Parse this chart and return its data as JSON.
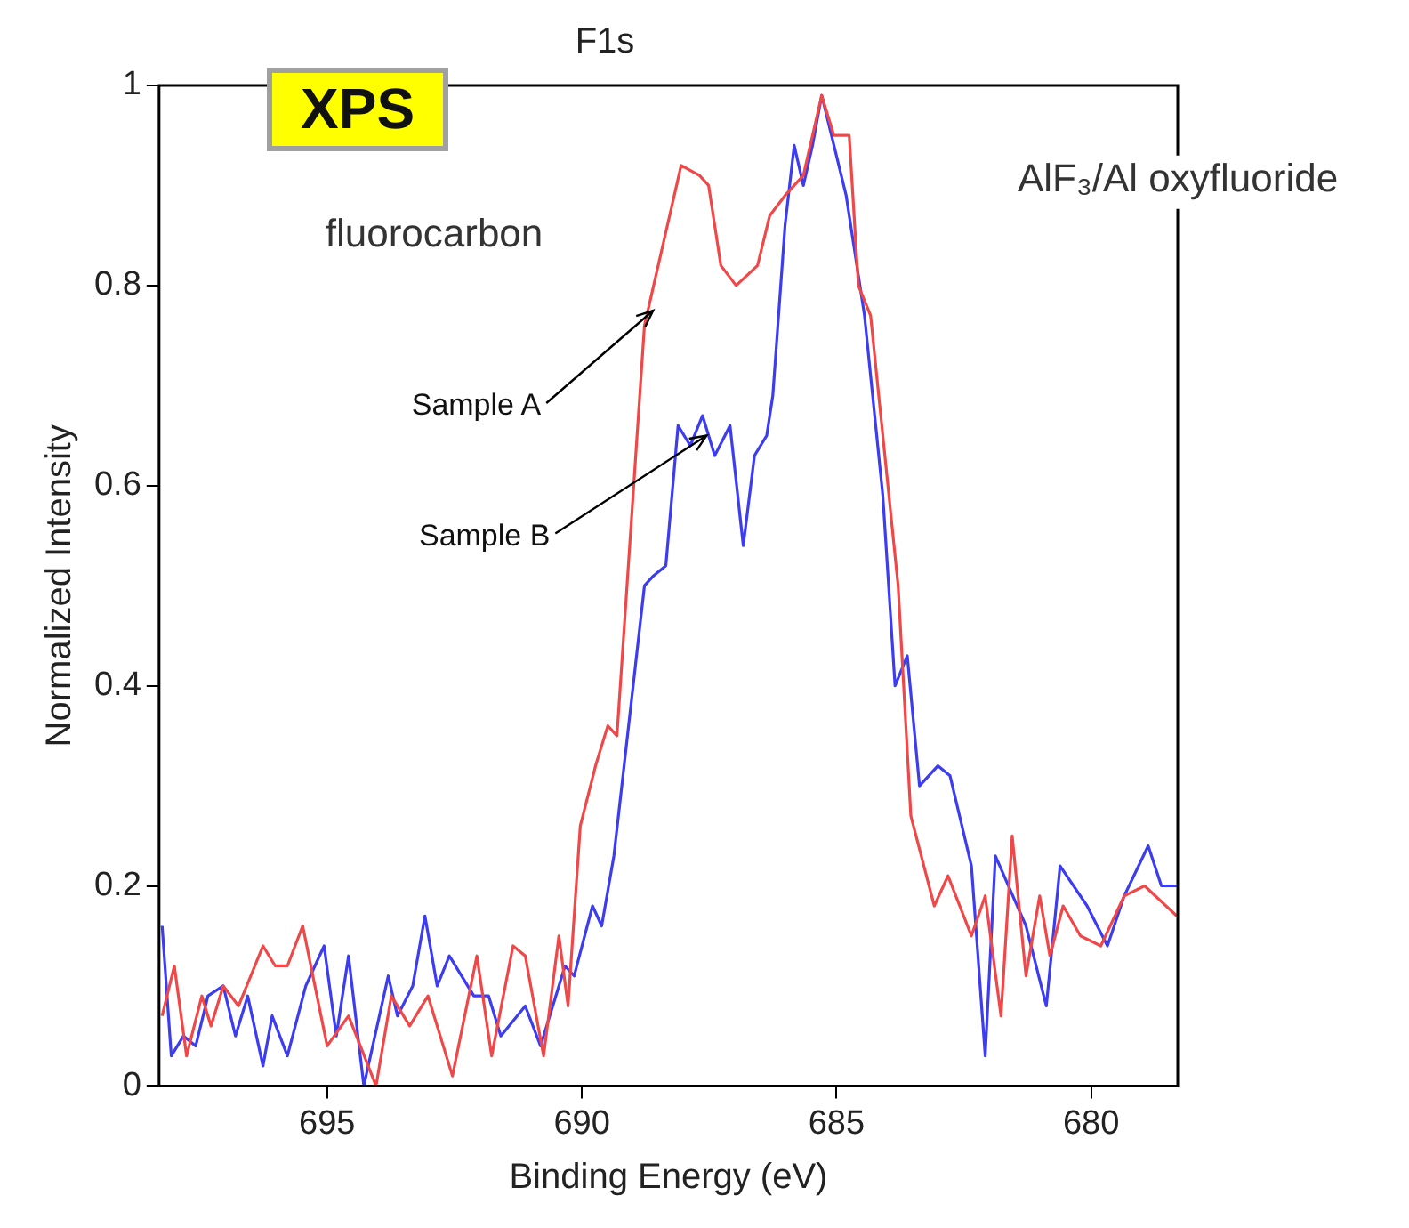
{
  "chart_data": {
    "type": "line",
    "title": "F1s",
    "xlabel": "Binding Energy (eV)",
    "ylabel": "Normalized Intensity",
    "xlim": [
      698.3,
      678.3
    ],
    "xticks": [
      695,
      690,
      685,
      680
    ],
    "ylim": [
      0,
      1
    ],
    "yticks": [
      0,
      0.2,
      0.4,
      0.6,
      0.8,
      1
    ],
    "grid": false,
    "legend": false,
    "marker": "none",
    "line_style": "solid",
    "annotations": [
      "XPS",
      "fluorocarbon",
      "AlF₃/Al oxyfluoride",
      {
        "text": "Sample A",
        "x": 688.6,
        "y": 0.775
      },
      {
        "text": "Sample B",
        "x": 687.55,
        "y": 0.65
      }
    ],
    "series": [
      {
        "color": "#f04848",
        "x": [
          698.24,
          698.0,
          697.76,
          697.46,
          697.28,
          697.04,
          696.74,
          696.26,
          696.02,
          695.78,
          695.48,
          695.0,
          694.58,
          694.04,
          693.74,
          693.38,
          693.02,
          692.54,
          692.06,
          691.77,
          691.35,
          691.11,
          690.75,
          690.45,
          690.27,
          690.03,
          689.73,
          689.49,
          689.31,
          688.77,
          688.05,
          687.69,
          687.51,
          687.27,
          686.97,
          686.55,
          686.31,
          686.01,
          685.65,
          685.29,
          685.05,
          684.75,
          684.57,
          684.33,
          684.21,
          683.79,
          683.54,
          683.08,
          682.81,
          682.35,
          682.08,
          681.77,
          681.55,
          681.28,
          681.01,
          680.81,
          680.55,
          680.21,
          679.81,
          679.35,
          678.95,
          678.32
        ],
        "values": [
          0.07,
          0.12,
          0.03,
          0.09,
          0.06,
          0.1,
          0.08,
          0.14,
          0.12,
          0.12,
          0.16,
          0.04,
          0.07,
          0.0,
          0.09,
          0.06,
          0.09,
          0.01,
          0.13,
          0.03,
          0.14,
          0.13,
          0.03,
          0.15,
          0.08,
          0.26,
          0.32,
          0.36,
          0.35,
          0.76,
          0.92,
          0.91,
          0.9,
          0.82,
          0.8,
          0.82,
          0.87,
          0.89,
          0.91,
          0.99,
          0.95,
          0.95,
          0.8,
          0.77,
          0.71,
          0.5,
          0.27,
          0.18,
          0.21,
          0.15,
          0.19,
          0.07,
          0.25,
          0.11,
          0.19,
          0.13,
          0.18,
          0.15,
          0.14,
          0.19,
          0.2,
          0.17
        ]
      },
      {
        "color": "#3c3cf0",
        "x": [
          698.24,
          698.06,
          697.82,
          697.58,
          697.34,
          697.04,
          696.8,
          696.56,
          696.26,
          696.08,
          695.78,
          695.42,
          695.06,
          694.82,
          694.58,
          694.28,
          693.8,
          693.62,
          693.32,
          693.08,
          692.84,
          692.6,
          692.12,
          691.83,
          691.59,
          691.11,
          690.81,
          690.33,
          690.15,
          689.79,
          689.61,
          689.37,
          688.77,
          688.59,
          688.35,
          688.11,
          687.87,
          687.63,
          687.39,
          687.09,
          686.83,
          686.61,
          686.37,
          686.25,
          686.01,
          685.83,
          685.65,
          685.47,
          685.29,
          684.81,
          684.45,
          684.09,
          683.85,
          683.61,
          683.37,
          683.01,
          682.77,
          682.35,
          682.08,
          681.88,
          681.28,
          680.88,
          680.61,
          680.08,
          679.68,
          679.35,
          678.88,
          678.62,
          678.32
        ],
        "values": [
          0.16,
          0.03,
          0.05,
          0.04,
          0.09,
          0.1,
          0.05,
          0.09,
          0.02,
          0.07,
          0.03,
          0.1,
          0.14,
          0.05,
          0.13,
          0.0,
          0.11,
          0.07,
          0.1,
          0.17,
          0.1,
          0.13,
          0.09,
          0.09,
          0.05,
          0.08,
          0.04,
          0.12,
          0.11,
          0.18,
          0.16,
          0.23,
          0.5,
          0.51,
          0.52,
          0.66,
          0.64,
          0.67,
          0.63,
          0.66,
          0.54,
          0.63,
          0.65,
          0.69,
          0.86,
          0.94,
          0.9,
          0.94,
          0.99,
          0.89,
          0.77,
          0.59,
          0.4,
          0.43,
          0.3,
          0.32,
          0.31,
          0.22,
          0.03,
          0.23,
          0.16,
          0.08,
          0.22,
          0.18,
          0.14,
          0.19,
          0.24,
          0.2,
          0.2
        ]
      }
    ]
  }
}
